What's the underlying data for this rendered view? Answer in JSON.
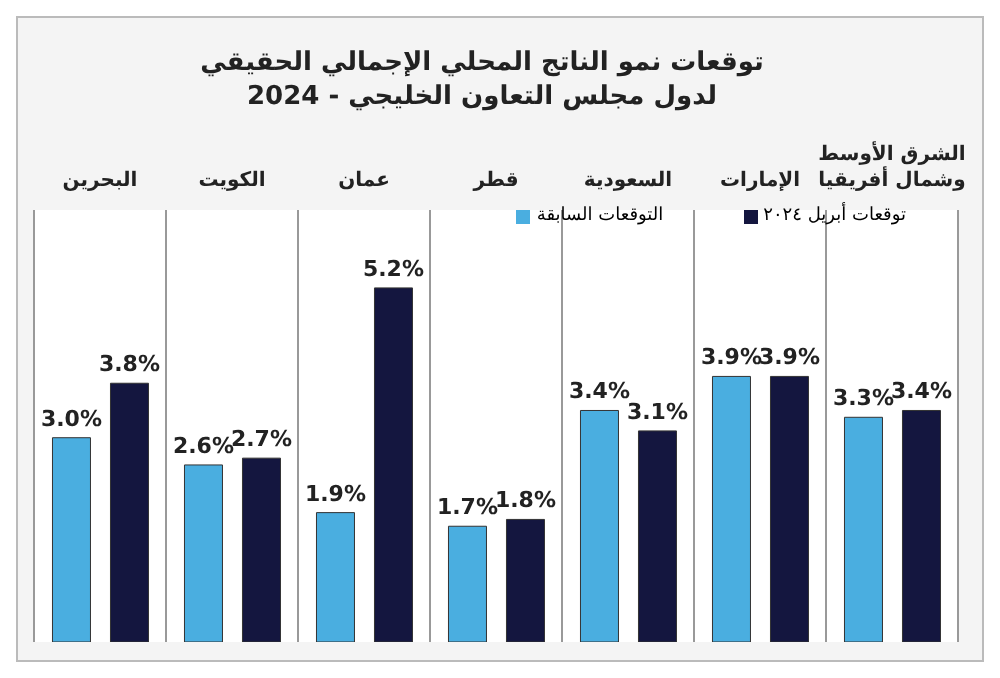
{
  "chart_data": {
    "type": "bar",
    "title": "توقعات نمو الناتج المحلي الإجمالي الحقيقي لدول مجلس التعاون الخليجي - 2024",
    "categories": [
      "البحرين",
      "الكويت",
      "عمان",
      "قطر",
      "السعودية",
      "الإمارات",
      "الشرق الأوسط وشمال أفريقيا"
    ],
    "series": [
      {
        "name": "التوقعات السابقة",
        "color": "#4aaee0",
        "values": [
          3.0,
          2.6,
          1.9,
          1.7,
          3.4,
          3.9,
          3.3
        ],
        "value_labels": [
          "3.0%",
          "2.6%",
          "1.9%",
          "1.7%",
          "3.4%",
          "3.9%",
          "3.3%"
        ]
      },
      {
        "name": "توقعات أبريل ٢٠٢٤",
        "color": "#14163f",
        "values": [
          3.8,
          2.7,
          5.2,
          1.8,
          3.1,
          3.9,
          3.4
        ],
        "value_labels": [
          "3.8%",
          "2.7%",
          "5.2%",
          "1.8%",
          "3.1%",
          "3.9%",
          "3.4%"
        ]
      }
    ],
    "grid": "x",
    "legend": "top right"
  }
}
